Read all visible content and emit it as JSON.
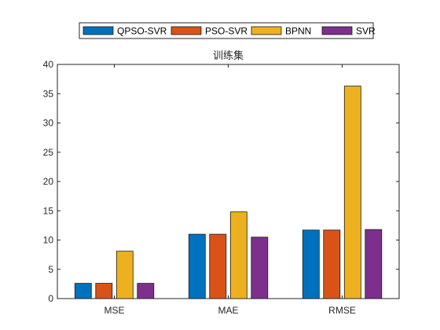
{
  "chart_data": {
    "type": "bar",
    "title": "训练集",
    "categories": [
      "MSE",
      "MAE",
      "RMSE"
    ],
    "series": [
      {
        "name": "QPSO-SVR",
        "color": "#0072BD",
        "values": [
          2.6,
          11.0,
          11.7
        ]
      },
      {
        "name": "PSO-SVR",
        "color": "#D95319",
        "values": [
          2.6,
          11.0,
          11.7
        ]
      },
      {
        "name": "BPNN",
        "color": "#EDB120",
        "values": [
          8.1,
          14.8,
          36.3
        ]
      },
      {
        "name": "SVR",
        "color": "#7E2F8E",
        "values": [
          2.6,
          10.5,
          11.8
        ]
      }
    ],
    "ylim": [
      0,
      40
    ],
    "yticks": [
      0,
      5,
      10,
      15,
      20,
      25,
      30,
      35,
      40
    ],
    "xlabel": "",
    "ylabel": "",
    "grid": false,
    "legend_position": "top-outside-horizontal"
  }
}
